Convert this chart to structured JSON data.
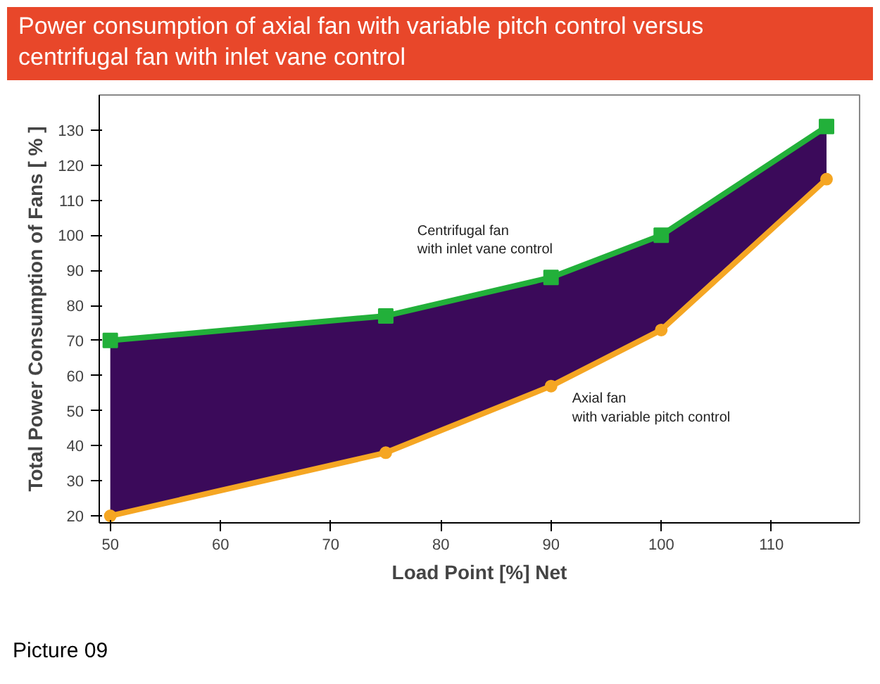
{
  "chart_data": {
    "type": "line",
    "title": "Power consumption of axial fan with variable pitch control versus centrifugal fan with inlet vane control",
    "xlabel": "Load Point [%] Net",
    "ylabel": "Total Power Consumption of Fans [ % ]",
    "x": [
      50,
      75,
      90,
      100,
      115
    ],
    "series": [
      {
        "name": "Centrifugal fan\nwith inlet vane control",
        "color": "#22b03a",
        "marker": "square",
        "values": [
          70,
          77,
          88,
          100,
          131
        ],
        "lower": [
          20,
          38,
          57,
          73,
          116
        ],
        "upper": [
          70,
          77,
          88,
          100,
          131
        ]
      },
      {
        "name": "Axial fan\nwith variable pitch control",
        "color": "#f5a623",
        "marker": "circle",
        "values": [
          20,
          38,
          57,
          73,
          116
        ]
      }
    ],
    "xlim": [
      49,
      118
    ],
    "ylim": [
      18,
      140
    ],
    "xticks": [
      50,
      60,
      70,
      80,
      90,
      100,
      110
    ],
    "yticks": [
      20,
      30,
      40,
      50,
      60,
      70,
      80,
      90,
      100,
      110,
      120,
      130
    ],
    "grid": false,
    "annotations": [
      "Picture 09"
    ]
  }
}
